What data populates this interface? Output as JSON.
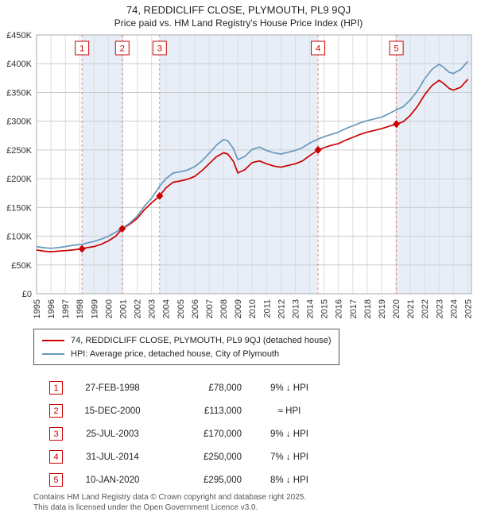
{
  "title": "74, REDDICLIFF CLOSE, PLYMOUTH, PL9 9QJ",
  "subtitle": "Price paid vs. HM Land Registry's House Price Index (HPI)",
  "colors": {
    "property": "#cc0000",
    "hpi": "#6699bb",
    "band": "#e7eef8",
    "sale_line": "#d98c8c",
    "grid_h": "#cccccc",
    "grid_v": "#dddddd",
    "frame": "#aaaaaa"
  },
  "legend": {
    "series1": "74, REDDICLIFF CLOSE, PLYMOUTH, PL9 9QJ (detached house)",
    "series2": "HPI: Average price, detached house, City of Plymouth"
  },
  "chart_data": {
    "type": "line",
    "title": "Price paid vs. HM Land Registry's House Price Index (HPI)",
    "xlabel": "",
    "ylabel": "",
    "x_range": [
      1995,
      2025.25
    ],
    "y_range": [
      0,
      450
    ],
    "y_ticks": [
      0,
      50,
      100,
      150,
      200,
      250,
      300,
      350,
      400,
      450
    ],
    "y_tick_labels": [
      "£0",
      "£50K",
      "£100K",
      "£150K",
      "£200K",
      "£250K",
      "£300K",
      "£350K",
      "£400K",
      "£450K"
    ],
    "x_ticks": [
      1995,
      1996,
      1997,
      1998,
      1999,
      2000,
      2001,
      2002,
      2003,
      2004,
      2005,
      2006,
      2007,
      2008,
      2009,
      2010,
      2011,
      2012,
      2013,
      2014,
      2015,
      2016,
      2017,
      2018,
      2019,
      2020,
      2021,
      2022,
      2023,
      2024,
      2025
    ],
    "bands": [
      [
        1998.16,
        2000.96
      ],
      [
        2003.56,
        2014.58
      ],
      [
        2020.03,
        2025.25
      ]
    ],
    "series": [
      {
        "name": "74, REDDICLIFF CLOSE, PLYMOUTH, PL9 9QJ (detached house)",
        "color": "#cc0000",
        "x": [
          1995,
          1995.5,
          1996,
          1996.5,
          1997,
          1997.5,
          1998.16,
          1998.5,
          1999,
          1999.5,
          2000,
          2000.5,
          2000.96,
          2001.5,
          2002,
          2002.5,
          2003,
          2003.56,
          2004,
          2004.5,
          2005,
          2005.5,
          2006,
          2006.5,
          2007,
          2007.5,
          2008,
          2008.3,
          2008.7,
          2009,
          2009.5,
          2010,
          2010.5,
          2011,
          2011.5,
          2012,
          2012.5,
          2013,
          2013.5,
          2014,
          2014.58,
          2015,
          2015.5,
          2016,
          2016.5,
          2017,
          2017.5,
          2018,
          2018.5,
          2019,
          2019.5,
          2020.03,
          2020.5,
          2021,
          2021.5,
          2022,
          2022.5,
          2023,
          2023.3,
          2023.7,
          2024,
          2024.5,
          2025
        ],
        "values": [
          76,
          74,
          73,
          74,
          75,
          76,
          78,
          80,
          82,
          86,
          92,
          100,
          113,
          121,
          131,
          146,
          158,
          170,
          184,
          194,
          196,
          199,
          204,
          214,
          226,
          238,
          245,
          243,
          230,
          210,
          216,
          228,
          231,
          226,
          222,
          220,
          223,
          226,
          231,
          240,
          250,
          254,
          258,
          261,
          267,
          272,
          277,
          281,
          284,
          287,
          291,
          295,
          299,
          310,
          326,
          346,
          362,
          371,
          366,
          357,
          354,
          359,
          373
        ]
      },
      {
        "name": "HPI: Average price, detached house, City of Plymouth",
        "color": "#6699bb",
        "x": [
          1995,
          1995.5,
          1996,
          1996.5,
          1997,
          1997.5,
          1998.16,
          1998.5,
          1999,
          1999.5,
          2000,
          2000.5,
          2000.96,
          2001.5,
          2002,
          2002.5,
          2003,
          2003.56,
          2004,
          2004.5,
          2005,
          2005.5,
          2006,
          2006.5,
          2007,
          2007.5,
          2008,
          2008.3,
          2008.7,
          2009,
          2009.5,
          2010,
          2010.5,
          2011,
          2011.5,
          2012,
          2012.5,
          2013,
          2013.5,
          2014,
          2014.58,
          2015,
          2015.5,
          2016,
          2016.5,
          2017,
          2017.5,
          2018,
          2018.5,
          2019,
          2019.5,
          2020.03,
          2020.5,
          2021,
          2021.5,
          2022,
          2022.5,
          2023,
          2023.3,
          2023.7,
          2024,
          2024.5,
          2025
        ],
        "values": [
          82,
          80,
          79,
          80,
          82,
          84,
          86,
          88,
          91,
          95,
          100,
          107,
          114,
          123,
          135,
          152,
          166,
          187,
          200,
          210,
          212,
          215,
          221,
          231,
          244,
          258,
          268,
          266,
          252,
          233,
          239,
          251,
          255,
          249,
          245,
          243,
          246,
          249,
          254,
          262,
          269,
          273,
          277,
          281,
          287,
          292,
          297,
          301,
          304,
          307,
          313,
          320,
          325,
          337,
          353,
          374,
          390,
          399,
          394,
          385,
          383,
          390,
          404
        ]
      }
    ],
    "sale_points": {
      "x": [
        1998.16,
        2000.96,
        2003.56,
        2014.58,
        2020.03
      ],
      "values": [
        78,
        113,
        170,
        250,
        295
      ],
      "labels": [
        "1",
        "2",
        "3",
        "4",
        "5"
      ]
    }
  },
  "transactions": [
    {
      "num": "1",
      "date": "27-FEB-1998",
      "price": "£78,000",
      "hpi": "9% ↓ HPI"
    },
    {
      "num": "2",
      "date": "15-DEC-2000",
      "price": "£113,000",
      "hpi": "≈ HPI"
    },
    {
      "num": "3",
      "date": "25-JUL-2003",
      "price": "£170,000",
      "hpi": "9% ↓ HPI"
    },
    {
      "num": "4",
      "date": "31-JUL-2014",
      "price": "£250,000",
      "hpi": "7% ↓ HPI"
    },
    {
      "num": "5",
      "date": "10-JAN-2020",
      "price": "£295,000",
      "hpi": "8% ↓ HPI"
    }
  ],
  "footer": {
    "line1": "Contains HM Land Registry data © Crown copyright and database right 2025.",
    "line2": "This data is licensed under the Open Government Licence v3.0."
  }
}
